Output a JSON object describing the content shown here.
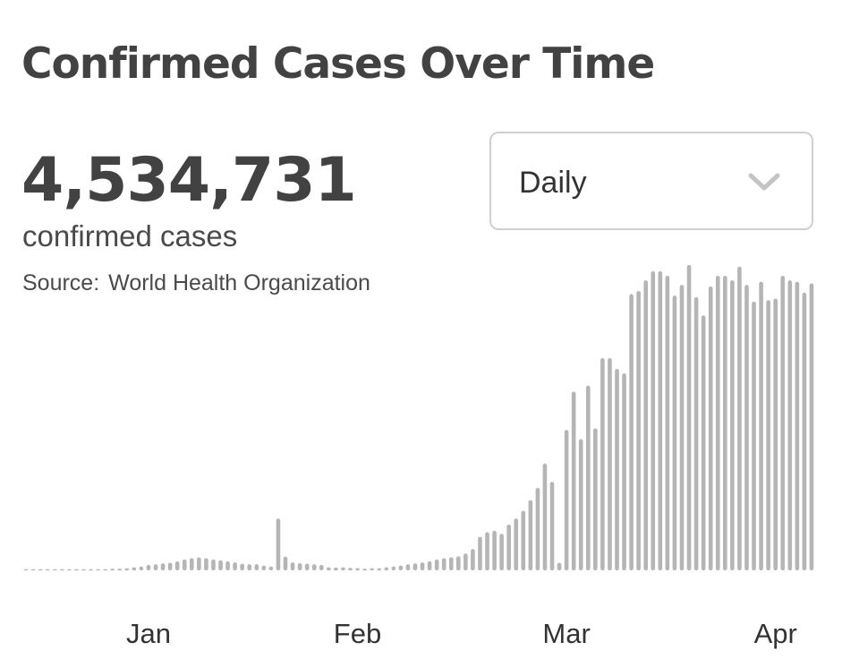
{
  "title": "Confirmed Cases Over Time",
  "total": "4,534,731",
  "total_label": "confirmed cases",
  "source": {
    "prefix": "Source:",
    "name": "World Health Organization"
  },
  "dropdown": {
    "selected": "Daily",
    "icon": "chevron-down-icon"
  },
  "colors": {
    "bar": "#b5b5b5",
    "text": "#424242"
  },
  "chart_data": {
    "type": "bar",
    "title": "Confirmed Cases Over Time",
    "x_tick_labels": [
      "Jan",
      "Feb",
      "Mar",
      "Apr"
    ],
    "x_tick_positions": [
      17,
      46,
      75,
      104
    ],
    "ylim": [
      0,
      100
    ],
    "y_unit": "percent of tallest daily bar",
    "grid": false,
    "legend": "none",
    "values": [
      0.3,
      0,
      0,
      0,
      0,
      0,
      0,
      0,
      0,
      0,
      0.3,
      0.3,
      0.5,
      0.5,
      0.7,
      1,
      1.3,
      1.8,
      2,
      2.3,
      2.5,
      3,
      3.6,
      4,
      4.3,
      4,
      3.6,
      3.3,
      3,
      2.6,
      2.2,
      2,
      2,
      1.6,
      1.3,
      17,
      4.5,
      2.6,
      2.4,
      2.2,
      2,
      1.8,
      1,
      0.9,
      1,
      0.8,
      0.7,
      0.5,
      0.7,
      0.7,
      1,
      1.3,
      1.6,
      2,
      2.3,
      2.6,
      3,
      3.6,
      4,
      4.3,
      4.6,
      5.5,
      7,
      11,
      12.5,
      13,
      12,
      15,
      17,
      19.5,
      23,
      27,
      35,
      29,
      2.5,
      46,
      58.5,
      43,
      60.5,
      46.5,
      69.5,
      69.5,
      66,
      64.5,
      90.5,
      91.5,
      95,
      98,
      98,
      96.5,
      90,
      93.5,
      100,
      89.5,
      83.5,
      93,
      96.5,
      96.5,
      95,
      99.5,
      93.5,
      88,
      94.5,
      88.5,
      89,
      96.5,
      95,
      94.5,
      91,
      94
    ]
  }
}
